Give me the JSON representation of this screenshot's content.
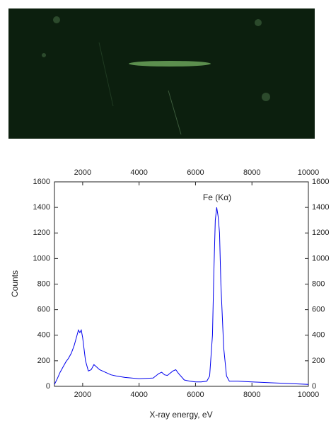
{
  "chart_data": {
    "type": "line",
    "xlabel": "X-ray energy, eV",
    "ylabel": "Counts",
    "annotation": "Fe (Kα)",
    "x": [
      1000,
      1100,
      1200,
      1300,
      1400,
      1500,
      1600,
      1700,
      1800,
      1850,
      1900,
      1950,
      2000,
      2100,
      2200,
      2300,
      2400,
      2500,
      2600,
      2800,
      3000,
      3200,
      3500,
      4000,
      4500,
      4700,
      4800,
      4900,
      5000,
      5200,
      5300,
      5400,
      5600,
      5800,
      6000,
      6200,
      6400,
      6500,
      6600,
      6650,
      6700,
      6750,
      6800,
      6850,
      6900,
      7000,
      7100,
      7200,
      7500,
      8000,
      8500,
      9000,
      9500,
      10000
    ],
    "series": [
      {
        "color": "#0000ee",
        "values": [
          15,
          60,
          110,
          150,
          190,
          220,
          260,
          320,
          400,
          440,
          420,
          440,
          380,
          200,
          120,
          130,
          170,
          150,
          130,
          110,
          90,
          80,
          70,
          60,
          65,
          100,
          110,
          90,
          85,
          120,
          130,
          100,
          50,
          40,
          35,
          35,
          40,
          80,
          400,
          900,
          1300,
          1400,
          1330,
          1200,
          800,
          300,
          80,
          40,
          40,
          35,
          30,
          25,
          20,
          15
        ]
      }
    ],
    "xlim": [
      1000,
      10000
    ],
    "xticks": [
      2000,
      4000,
      6000,
      8000,
      10000
    ],
    "ylim": [
      0,
      1600
    ],
    "yticks": [
      0,
      200,
      400,
      600,
      800,
      1000,
      1200,
      1400,
      1600
    ]
  }
}
